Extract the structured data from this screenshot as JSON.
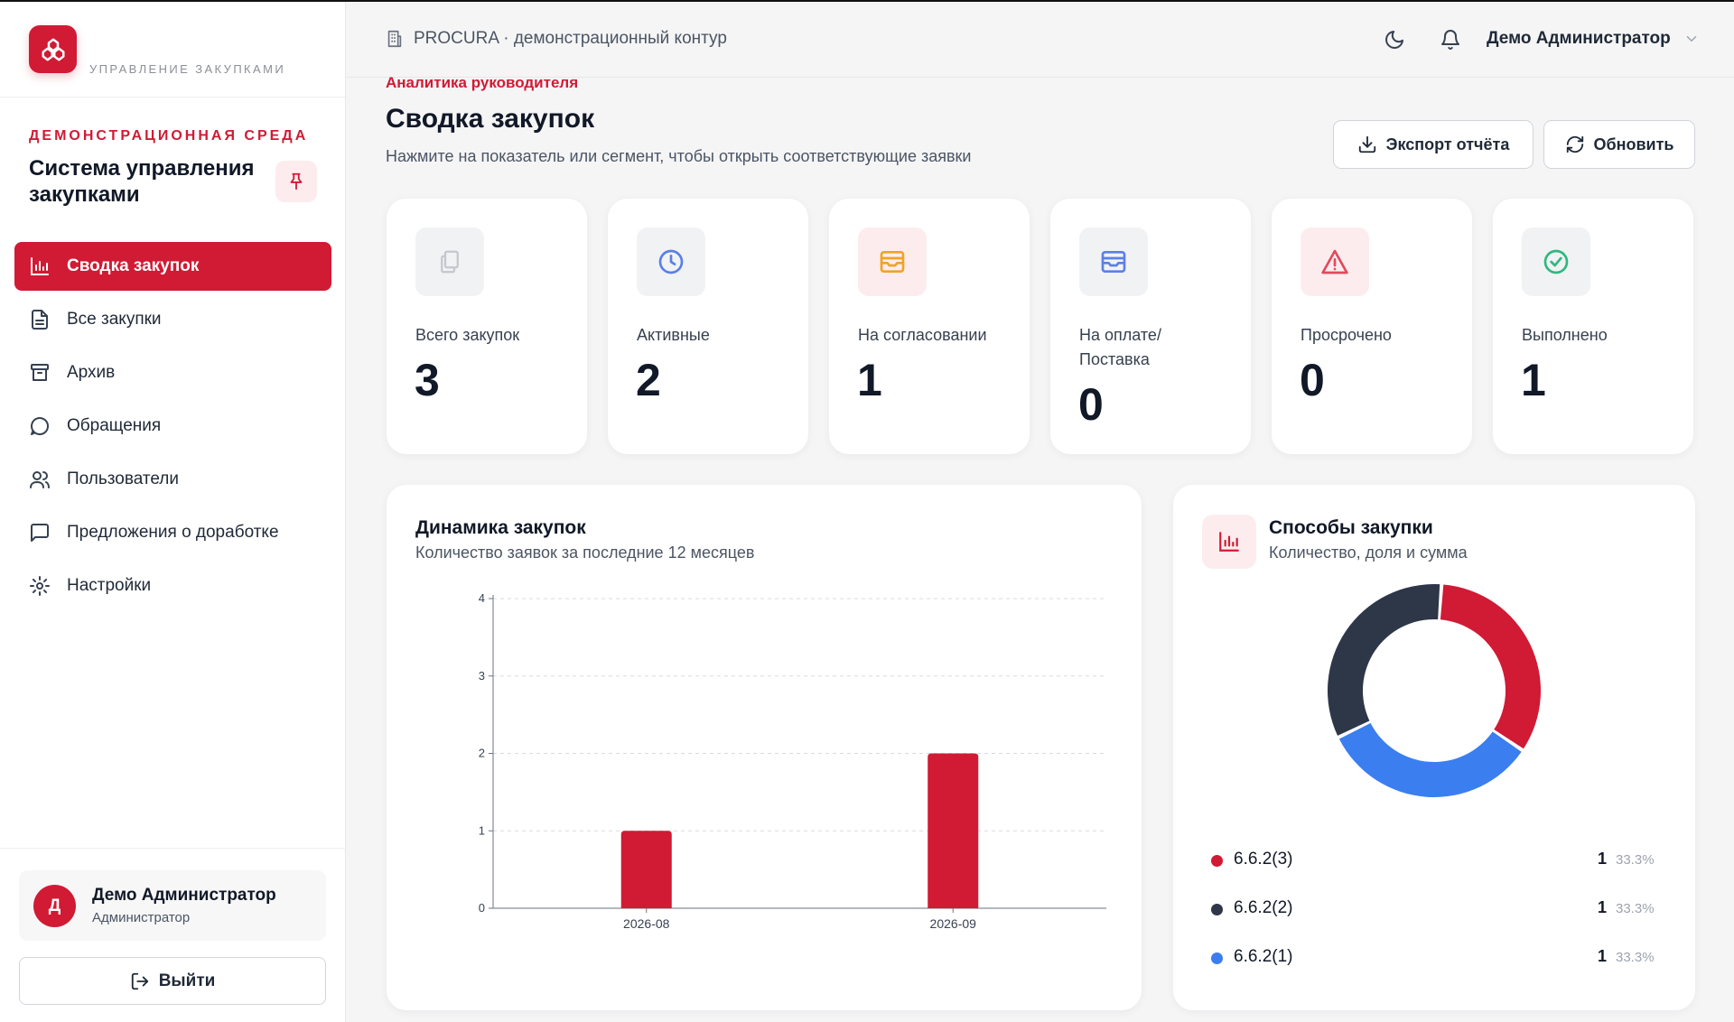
{
  "sidebar": {
    "logo_subtitle": "УПРАВЛЕНИЕ ЗАКУПКАМИ",
    "environment_label": "ДЕМОНСТРАЦИОННАЯ СРЕДА",
    "system_title": "Система управления закупками",
    "nav": [
      {
        "label": "Сводка закупок",
        "icon": "bar-chart-icon",
        "active": true
      },
      {
        "label": "Все закупки",
        "icon": "file-list-icon",
        "active": false
      },
      {
        "label": "Архив",
        "icon": "archive-icon",
        "active": false
      },
      {
        "label": "Обращения",
        "icon": "chat-bubble-icon",
        "active": false
      },
      {
        "label": "Пользователи",
        "icon": "users-icon",
        "active": false
      },
      {
        "label": "Предложения о доработке",
        "icon": "message-square-icon",
        "active": false
      },
      {
        "label": "Настройки",
        "icon": "gear-icon",
        "active": false
      }
    ],
    "user": {
      "initial": "Д",
      "name": "Демо Администратор",
      "role": "Администратор"
    },
    "logout_label": "Выйти"
  },
  "header": {
    "breadcrumb": "PROCURA · демонстрационный контур",
    "user_name": "Демо Администратор"
  },
  "page": {
    "kicker": "Аналитика руководителя",
    "title": "Сводка закупок",
    "subtitle": "Нажмите на показатель или сегмент, чтобы открыть соответствующие заявки",
    "export_label": "Экспорт отчёта",
    "refresh_label": "Обновить"
  },
  "kpis": [
    {
      "label": "Всего закупок",
      "value": "3",
      "icon": "files-icon"
    },
    {
      "label": "Активные",
      "value": "2",
      "icon": "clock-icon"
    },
    {
      "label": "На согласовании",
      "value": "1",
      "icon": "inbox-icon"
    },
    {
      "label": "На оплате/ Поставка",
      "value": "0",
      "icon": "inbox-icon"
    },
    {
      "label": "Просрочено",
      "value": "0",
      "icon": "warning-icon"
    },
    {
      "label": "Выполнено",
      "value": "1",
      "icon": "check-circle-icon"
    }
  ],
  "dynamics": {
    "title": "Динамика закупок",
    "subtitle": "Количество заявок за последние 12 месяцев"
  },
  "methods": {
    "title": "Способы закупки",
    "subtitle": "Количество, доля и сумма",
    "items": [
      {
        "name": "6.6.2(3)",
        "count": "1",
        "share": "33.3%",
        "color": "#d11a34"
      },
      {
        "name": "6.6.2(2)",
        "count": "1",
        "share": "33.3%",
        "color": "#2d3748"
      },
      {
        "name": "6.6.2(1)",
        "count": "1",
        "share": "33.3%",
        "color": "#3b7ef0"
      }
    ]
  },
  "colors": {
    "accent": "#d11a34",
    "blue": "#3b7ef0",
    "dark": "#2d3748"
  },
  "chart_data": [
    {
      "type": "bar",
      "title": "Динамика закупок",
      "subtitle": "Количество заявок за последние 12 месяцев",
      "categories": [
        "2026-08",
        "2026-09"
      ],
      "values": [
        1,
        2
      ],
      "yticks": [
        "0",
        "1",
        "2",
        "3",
        "4"
      ],
      "ylim": [
        0,
        4
      ],
      "grid": true,
      "color": "#d11a34"
    },
    {
      "type": "pie",
      "title": "Способы закупки",
      "labels": [
        "6.6.2(3)",
        "6.6.2(1)",
        "6.6.2(2)"
      ],
      "values": [
        1,
        1,
        1
      ],
      "colors": [
        "#d11a34",
        "#3b7ef0",
        "#2d3748"
      ],
      "donut": true
    }
  ]
}
